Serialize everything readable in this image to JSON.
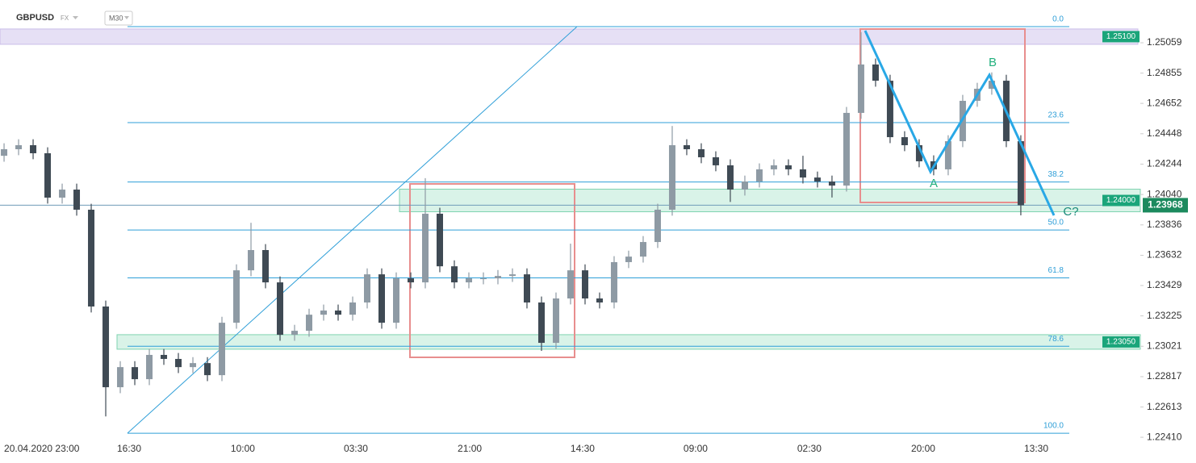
{
  "header": {
    "symbol": "GBPUSD",
    "market": "FX",
    "interval": "M30"
  },
  "chart_data": {
    "type": "candlestick",
    "open": [
      1.243,
      1.24344,
      1.24371,
      1.24317,
      1.24019,
      1.24073,
      1.23938,
      1.23288,
      1.22746,
      1.22881,
      1.228,
      1.22963,
      1.22936,
      1.22881,
      1.22908,
      1.22827,
      1.23179,
      1.23531,
      1.23667,
      1.2345,
      1.23098,
      1.23125,
      1.23233,
      1.23261,
      1.23233,
      1.23315,
      1.23504,
      1.23179,
      1.23477,
      1.2345,
      1.23911,
      1.23558,
      1.2345,
      1.23477,
      1.23477,
      1.23493,
      1.23504,
      1.23315,
      1.23044,
      1.23342,
      1.23531,
      1.23342,
      1.23315,
      1.23586,
      1.23623,
      1.23721,
      1.23938,
      1.24371,
      1.24344,
      1.2429,
      1.24236,
      1.24073,
      1.24127,
      1.24209,
      1.24236,
      1.24209,
      1.24154,
      1.24127,
      1.241,
      1.24588,
      1.24913,
      1.24804,
      1.24425,
      1.24371,
      1.24263,
      1.24209,
      1.24398,
      1.24669,
      1.2475,
      1.24804,
      1.24398
    ],
    "high": [
      1.24384,
      1.24411,
      1.24411,
      1.24357,
      1.24113,
      1.24113,
      1.23978,
      1.23328,
      1.22921,
      1.22921,
      1.23003,
      1.23003,
      1.22976,
      1.22948,
      1.22948,
      1.23219,
      1.23571,
      1.2385,
      1.23707,
      1.2349,
      1.23165,
      1.23273,
      1.23301,
      1.23301,
      1.23355,
      1.23544,
      1.23544,
      1.23517,
      1.23517,
      1.2415,
      1.23951,
      1.23598,
      1.23517,
      1.23517,
      1.23533,
      1.23544,
      1.23544,
      1.23355,
      1.23382,
      1.2371,
      1.23571,
      1.23382,
      1.23626,
      1.23663,
      1.23761,
      1.23978,
      1.245,
      1.24411,
      1.24384,
      1.2433,
      1.24276,
      1.24167,
      1.24249,
      1.24276,
      1.24276,
      1.243,
      1.24194,
      1.24167,
      1.24628,
      1.2513,
      1.24953,
      1.24844,
      1.24465,
      1.24411,
      1.24303,
      1.24438,
      1.24709,
      1.2479,
      1.2486,
      1.24844,
      1.24438
    ],
    "low": [
      1.2426,
      1.24304,
      1.24277,
      1.23979,
      1.23979,
      1.23898,
      1.23248,
      1.2255,
      1.22706,
      1.2276,
      1.2276,
      1.22896,
      1.22841,
      1.22841,
      1.22787,
      1.22787,
      1.23139,
      1.23491,
      1.2341,
      1.23058,
      1.23058,
      1.23085,
      1.23193,
      1.23193,
      1.23193,
      1.23275,
      1.23139,
      1.23139,
      1.2341,
      1.2341,
      1.23518,
      1.2341,
      1.2341,
      1.23437,
      1.23437,
      1.23453,
      1.23275,
      1.2299,
      1.23004,
      1.23302,
      1.23302,
      1.23275,
      1.23275,
      1.23546,
      1.23583,
      1.23681,
      1.23898,
      1.24304,
      1.2425,
      1.24196,
      1.2399,
      1.24033,
      1.24087,
      1.24169,
      1.24169,
      1.24114,
      1.24087,
      1.2402,
      1.2406,
      1.24548,
      1.24764,
      1.24385,
      1.24331,
      1.24223,
      1.24169,
      1.24169,
      1.24358,
      1.24629,
      1.2471,
      1.24358,
      1.239
    ],
    "close": [
      1.24344,
      1.24371,
      1.24317,
      1.24019,
      1.24073,
      1.23938,
      1.23288,
      1.22746,
      1.22881,
      1.228,
      1.22963,
      1.22936,
      1.22881,
      1.22908,
      1.22827,
      1.23179,
      1.23531,
      1.23667,
      1.2345,
      1.23098,
      1.23125,
      1.23233,
      1.23261,
      1.23233,
      1.23315,
      1.23504,
      1.23179,
      1.23477,
      1.2345,
      1.23911,
      1.23558,
      1.2345,
      1.23477,
      1.23477,
      1.23493,
      1.23504,
      1.23315,
      1.23044,
      1.23342,
      1.23531,
      1.23342,
      1.23315,
      1.23586,
      1.23623,
      1.23721,
      1.23938,
      1.24371,
      1.24344,
      1.2429,
      1.24236,
      1.24073,
      1.24127,
      1.24209,
      1.24236,
      1.24209,
      1.24154,
      1.24127,
      1.241,
      1.24588,
      1.24913,
      1.24804,
      1.24425,
      1.24371,
      1.24263,
      1.24209,
      1.24398,
      1.24669,
      1.2475,
      1.24804,
      1.24398,
      1.23968
    ],
    "up_color": "#8e9aa4",
    "down_color": "#3f4a54",
    "xlim": [
      -0.28,
      78.06
    ],
    "xticks": [
      {
        "value": 0,
        "label": "20.04.2020 23:00"
      },
      {
        "value": 8.61,
        "label": "16:30"
      },
      {
        "value": 16.44,
        "label": "10:00"
      },
      {
        "value": 24.22,
        "label": "03:30"
      },
      {
        "value": 32.06,
        "label": "21:00"
      },
      {
        "value": 39.83,
        "label": "14:30"
      },
      {
        "value": 47.61,
        "label": "09:00"
      },
      {
        "value": 55.44,
        "label": "02:30"
      },
      {
        "value": 63.28,
        "label": "20:00"
      },
      {
        "value": 71.06,
        "label": "13:30"
      }
    ],
    "ylim": [
      1.22378,
      1.25346
    ],
    "yticks": [
      1.25059,
      1.24855,
      1.24652,
      1.24448,
      1.24244,
      {
        "value": 1.2404,
        "label": "1.24040"
      },
      1.23836,
      1.23632,
      1.23429,
      1.23225,
      1.23021,
      1.22817,
      1.22613,
      {
        "value": 1.2241,
        "label": "1.22410"
      }
    ],
    "last_price": 1.23968,
    "last_color": "#1c8a5e",
    "levels": [
      {
        "value": 1.251,
        "label": "1.25100",
        "color": "#e6e0f5"
      },
      {
        "value": 1.24,
        "label": "1.24000",
        "color": "#d9f3e8"
      },
      {
        "value": 1.2305,
        "label": "1.23050",
        "color": "#d9f3e8"
      }
    ],
    "fibonacci": {
      "high": 1.25167,
      "low": 1.22437,
      "color": "#2f9fd8",
      "levels": [
        {
          "value": 0,
          "label": "0.0"
        },
        23.6,
        38.2,
        {
          "value": 50,
          "label": "50.0"
        },
        61.8,
        78.6,
        {
          "value": 100,
          "label": "100.0"
        }
      ]
    },
    "pattern_labels": [
      "A",
      "B",
      "C?"
    ]
  }
}
